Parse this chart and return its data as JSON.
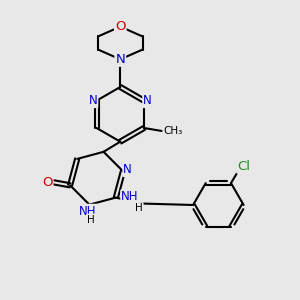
{
  "bg_color": "#e8e8e8",
  "bond_color": "#000000",
  "N_color": "#0000cc",
  "O_color": "#cc0000",
  "Cl_color": "#228B22",
  "line_width": 1.5,
  "font_size": 8.5,
  "xlim": [
    0,
    10
  ],
  "ylim": [
    0,
    10
  ]
}
